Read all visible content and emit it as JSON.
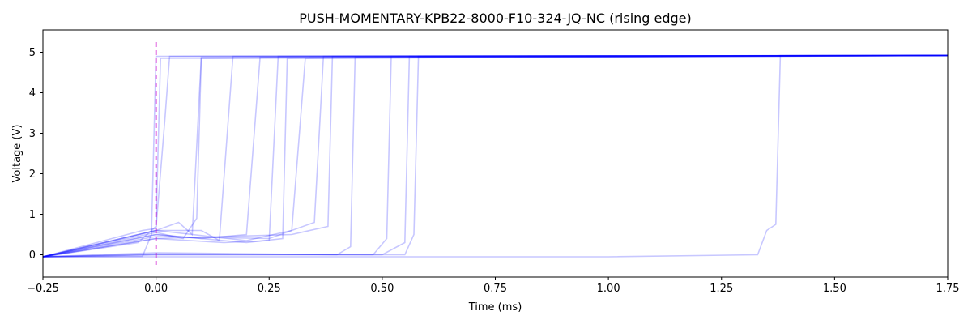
{
  "chart_data": {
    "type": "line",
    "title": "PUSH-MOMENTARY-KPB22-8000-F10-324-JQ-NC (rising edge)",
    "xlabel": "Time (ms)",
    "ylabel": "Voltage (V)",
    "xlim": [
      -0.25,
      1.75
    ],
    "ylim": [
      -0.55,
      5.55
    ],
    "xticks": [
      -0.25,
      0.0,
      0.25,
      0.5,
      0.75,
      1.0,
      1.25,
      1.5,
      1.75
    ],
    "xtick_labels": [
      "−0.25",
      "0.00",
      "0.25",
      "0.50",
      "0.75",
      "1.00",
      "1.25",
      "1.50",
      "1.75"
    ],
    "yticks": [
      0,
      1,
      2,
      3,
      4,
      5
    ],
    "ytick_labels": [
      "0",
      "1",
      "2",
      "3",
      "4",
      "5"
    ],
    "grid": false,
    "trigger_marker": {
      "x": 0.0,
      "y_range": [
        -0.25,
        5.25
      ],
      "color": "#cc00cc",
      "style": "dashed"
    },
    "series_color": "#0000ff",
    "series": [
      {
        "name": "trace-1",
        "points": [
          [
            -0.25,
            -0.05
          ],
          [
            -0.03,
            -0.04
          ],
          [
            -0.01,
            0.5
          ],
          [
            0.0,
            4.9
          ],
          [
            1.75,
            4.92
          ]
        ]
      },
      {
        "name": "trace-2",
        "points": [
          [
            -0.25,
            -0.05
          ],
          [
            -0.04,
            0.3
          ],
          [
            0.0,
            0.7
          ],
          [
            0.01,
            4.85
          ],
          [
            1.75,
            4.92
          ]
        ]
      },
      {
        "name": "trace-3",
        "points": [
          [
            -0.25,
            -0.05
          ],
          [
            -0.03,
            0.6
          ],
          [
            0.0,
            0.65
          ],
          [
            0.02,
            3.4
          ],
          [
            0.03,
            4.9
          ],
          [
            1.75,
            4.92
          ]
        ]
      },
      {
        "name": "trace-4",
        "points": [
          [
            -0.25,
            -0.05
          ],
          [
            0.0,
            0.6
          ],
          [
            0.05,
            0.8
          ],
          [
            0.08,
            0.5
          ],
          [
            0.1,
            4.88
          ],
          [
            1.75,
            4.92
          ]
        ]
      },
      {
        "name": "trace-5",
        "points": [
          [
            -0.25,
            -0.05
          ],
          [
            0.0,
            0.55
          ],
          [
            0.06,
            0.4
          ],
          [
            0.09,
            0.9
          ],
          [
            0.1,
            4.85
          ],
          [
            1.75,
            4.92
          ]
        ]
      },
      {
        "name": "trace-6",
        "points": [
          [
            -0.25,
            -0.05
          ],
          [
            0.0,
            0.6
          ],
          [
            0.1,
            0.6
          ],
          [
            0.14,
            0.35
          ],
          [
            0.17,
            4.9
          ],
          [
            1.75,
            4.92
          ]
        ]
      },
      {
        "name": "trace-7",
        "points": [
          [
            -0.25,
            -0.05
          ],
          [
            0.0,
            0.5
          ],
          [
            0.1,
            0.4
          ],
          [
            0.2,
            0.5
          ],
          [
            0.23,
            4.88
          ],
          [
            1.75,
            4.92
          ]
        ]
      },
      {
        "name": "trace-8",
        "points": [
          [
            -0.25,
            -0.05
          ],
          [
            0.0,
            0.4
          ],
          [
            0.15,
            0.3
          ],
          [
            0.25,
            0.35
          ],
          [
            0.27,
            4.9
          ],
          [
            1.75,
            4.92
          ]
        ]
      },
      {
        "name": "trace-9",
        "points": [
          [
            -0.25,
            -0.05
          ],
          [
            0.0,
            0.5
          ],
          [
            0.2,
            0.3
          ],
          [
            0.28,
            0.4
          ],
          [
            0.29,
            4.85
          ],
          [
            1.75,
            4.92
          ]
        ]
      },
      {
        "name": "trace-10",
        "points": [
          [
            -0.25,
            -0.05
          ],
          [
            0.0,
            0.6
          ],
          [
            0.2,
            0.35
          ],
          [
            0.3,
            0.6
          ],
          [
            0.33,
            4.85
          ],
          [
            1.75,
            4.92
          ]
        ]
      },
      {
        "name": "trace-11",
        "points": [
          [
            -0.25,
            -0.05
          ],
          [
            0.0,
            0.45
          ],
          [
            0.25,
            0.4
          ],
          [
            0.35,
            0.8
          ],
          [
            0.37,
            4.9
          ],
          [
            1.75,
            4.92
          ]
        ]
      },
      {
        "name": "trace-12",
        "points": [
          [
            -0.25,
            -0.05
          ],
          [
            0.0,
            0.4
          ],
          [
            0.3,
            0.5
          ],
          [
            0.38,
            0.7
          ],
          [
            0.39,
            4.9
          ],
          [
            1.75,
            4.92
          ]
        ]
      },
      {
        "name": "trace-13",
        "points": [
          [
            -0.25,
            -0.05
          ],
          [
            0.0,
            0.05
          ],
          [
            0.4,
            0.0
          ],
          [
            0.43,
            0.2
          ],
          [
            0.44,
            4.88
          ],
          [
            1.75,
            4.92
          ]
        ]
      },
      {
        "name": "trace-14",
        "points": [
          [
            -0.25,
            -0.05
          ],
          [
            0.0,
            0.02
          ],
          [
            0.48,
            0.0
          ],
          [
            0.51,
            0.4
          ],
          [
            0.52,
            4.9
          ],
          [
            1.75,
            4.92
          ]
        ]
      },
      {
        "name": "trace-15",
        "points": [
          [
            -0.25,
            -0.05
          ],
          [
            0.0,
            0.0
          ],
          [
            0.5,
            0.0
          ],
          [
            0.55,
            0.3
          ],
          [
            0.56,
            4.9
          ],
          [
            1.75,
            4.92
          ]
        ]
      },
      {
        "name": "trace-16",
        "points": [
          [
            -0.25,
            -0.05
          ],
          [
            0.0,
            0.0
          ],
          [
            0.55,
            0.0
          ],
          [
            0.57,
            0.5
          ],
          [
            0.58,
            4.9
          ],
          [
            1.75,
            4.92
          ]
        ]
      },
      {
        "name": "trace-17",
        "points": [
          [
            -0.25,
            -0.05
          ],
          [
            0.0,
            -0.05
          ],
          [
            1.0,
            -0.05
          ],
          [
            1.33,
            0.0
          ],
          [
            1.35,
            0.6
          ],
          [
            1.37,
            0.75
          ],
          [
            1.38,
            4.92
          ],
          [
            1.75,
            4.92
          ]
        ]
      }
    ]
  }
}
